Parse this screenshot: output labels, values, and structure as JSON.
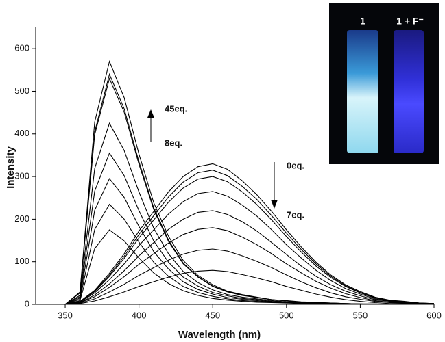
{
  "chart_data": {
    "type": "line",
    "x_label": "Wavelength (nm)",
    "y_label": "Intensity",
    "annotations": [
      "45eq.",
      "8eq.",
      "0eq.",
      "7eq."
    ],
    "inset_labels": [
      "1",
      "1 + F⁻"
    ],
    "color": "#000000",
    "xlim": [
      330,
      600
    ],
    "ylim": [
      0,
      650
    ],
    "xticks": [
      350,
      400,
      450,
      500,
      550,
      600
    ],
    "yticks": [
      0,
      100,
      200,
      300,
      400,
      500,
      600
    ],
    "x": [
      340,
      350,
      360,
      370,
      380,
      390,
      400,
      410,
      420,
      430,
      440,
      450,
      460,
      470,
      480,
      490,
      500,
      510,
      520,
      530,
      540,
      550,
      560,
      570,
      580,
      590,
      600
    ],
    "series": [
      {
        "values": [
          0,
          0,
          29,
          428,
          570,
          485,
          353,
          239,
          160,
          103,
          68,
          46,
          31,
          23,
          17,
          11,
          9,
          6,
          5,
          3,
          2,
          1,
          1,
          0,
          0,
          0,
          0
        ]
      },
      {
        "values": [
          0,
          0,
          27,
          405,
          540,
          459,
          335,
          227,
          151,
          97,
          65,
          43,
          30,
          22,
          16,
          11,
          8,
          5,
          4,
          3,
          2,
          1,
          1,
          0,
          0,
          0,
          0
        ]
      },
      {
        "values": [
          0,
          0,
          27,
          398,
          530,
          451,
          329,
          223,
          148,
          95,
          64,
          42,
          29,
          21,
          16,
          11,
          8,
          5,
          4,
          3,
          2,
          1,
          1,
          0,
          0,
          0,
          0
        ]
      },
      {
        "values": [
          0,
          0,
          21,
          319,
          425,
          361,
          264,
          179,
          119,
          77,
          51,
          34,
          23,
          17,
          13,
          9,
          6,
          4,
          3,
          2,
          1,
          1,
          0,
          0,
          0,
          0,
          0
        ]
      },
      {
        "values": [
          0,
          0,
          18,
          266,
          355,
          302,
          220,
          149,
          99,
          64,
          43,
          28,
          20,
          14,
          11,
          7,
          5,
          4,
          3,
          2,
          1,
          1,
          0,
          0,
          0,
          0,
          0
        ]
      },
      {
        "values": [
          0,
          0,
          15,
          221,
          295,
          251,
          183,
          124,
          83,
          53,
          35,
          24,
          16,
          12,
          9,
          6,
          4,
          3,
          2,
          1,
          1,
          1,
          0,
          0,
          0,
          0,
          0
        ]
      },
      {
        "values": [
          0,
          0,
          12,
          176,
          235,
          200,
          146,
          99,
          66,
          42,
          28,
          19,
          13,
          9,
          7,
          5,
          4,
          2,
          2,
          1,
          1,
          0,
          0,
          0,
          0,
          0,
          0
        ]
      },
      {
        "values": [
          0,
          0,
          9,
          131,
          175,
          149,
          109,
          74,
          49,
          32,
          21,
          14,
          10,
          7,
          5,
          4,
          3,
          2,
          1,
          1,
          1,
          0,
          0,
          0,
          0,
          0,
          0
        ]
      },
      {
        "values": [
          0,
          0,
          7,
          33,
          73,
          119,
          172,
          218,
          264,
          300,
          323,
          330,
          317,
          290,
          257,
          218,
          175,
          135,
          99,
          69,
          46,
          30,
          17,
          10,
          7,
          3,
          2
        ]
      },
      {
        "values": [
          0,
          0,
          6,
          32,
          69,
          113,
          164,
          208,
          252,
          287,
          309,
          315,
          302,
          277,
          246,
          208,
          167,
          129,
          95,
          66,
          44,
          28,
          16,
          9,
          6,
          3,
          2
        ]
      },
      {
        "values": [
          0,
          0,
          6,
          30,
          66,
          108,
          156,
          198,
          240,
          273,
          294,
          300,
          288,
          264,
          234,
          198,
          159,
          123,
          90,
          63,
          42,
          27,
          15,
          9,
          6,
          3,
          2
        ]
      },
      {
        "values": [
          0,
          0,
          5,
          27,
          58,
          95,
          138,
          175,
          212,
          241,
          260,
          265,
          254,
          233,
          207,
          175,
          140,
          109,
          80,
          56,
          37,
          24,
          13,
          8,
          5,
          3,
          1
        ]
      },
      {
        "values": [
          0,
          0,
          4,
          22,
          48,
          79,
          114,
          145,
          176,
          200,
          216,
          220,
          211,
          194,
          172,
          145,
          117,
          90,
          66,
          46,
          31,
          20,
          11,
          7,
          4,
          2,
          1
        ]
      },
      {
        "values": [
          0,
          0,
          4,
          18,
          40,
          65,
          94,
          119,
          144,
          164,
          176,
          180,
          173,
          158,
          140,
          119,
          95,
          74,
          54,
          38,
          25,
          16,
          9,
          5,
          4,
          2,
          1
        ]
      },
      {
        "values": [
          0,
          0,
          3,
          13,
          29,
          47,
          68,
          86,
          104,
          118,
          127,
          130,
          125,
          114,
          101,
          86,
          69,
          53,
          39,
          27,
          18,
          12,
          7,
          4,
          3,
          1,
          1
        ]
      },
      {
        "values": [
          0,
          0,
          2,
          8,
          18,
          29,
          42,
          53,
          64,
          73,
          78,
          80,
          77,
          70,
          62,
          53,
          42,
          33,
          24,
          17,
          11,
          7,
          4,
          2,
          2,
          1,
          0
        ]
      }
    ]
  }
}
